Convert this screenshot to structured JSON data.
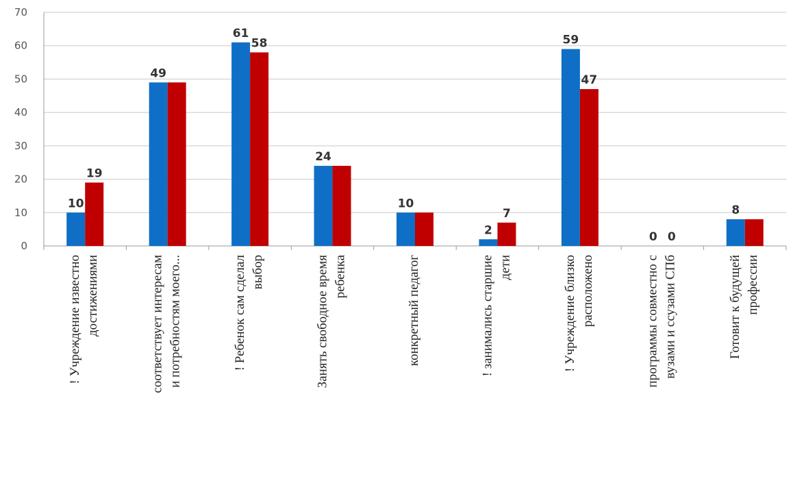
{
  "chart_data": {
    "type": "bar",
    "categories": [
      [
        "! Учреждение известно",
        "достижениями"
      ],
      [
        "соответствует интересам",
        "и потребностям моего..."
      ],
      [
        "! Ребенок сам сделал",
        "выбор"
      ],
      [
        "Занять свободное время",
        "ребенка"
      ],
      [
        "конкретный педагог"
      ],
      [
        "! занимались старшие",
        "дети"
      ],
      [
        "! Учреждение близко",
        "расположено"
      ],
      [
        "программы совместно с",
        "вузами и ссузами СПб"
      ],
      [
        "Готовит к будущей",
        "профессии"
      ]
    ],
    "series": [
      {
        "values": [
          10,
          49,
          61,
          24,
          10,
          2,
          59,
          0,
          8
        ],
        "color": "#0f6fc6"
      },
      {
        "values": [
          19,
          49,
          58,
          24,
          10,
          7,
          47,
          0,
          8
        ],
        "color": "#c00000"
      }
    ],
    "data_labels": [
      [
        "10",
        "19"
      ],
      [
        "49",
        ""
      ],
      [
        "61",
        "58"
      ],
      [
        "24",
        ""
      ],
      [
        "10",
        ""
      ],
      [
        "2",
        "7"
      ],
      [
        "59",
        "47"
      ],
      [
        "0",
        "0"
      ],
      [
        "8",
        ""
      ]
    ],
    "ylim": [
      0,
      70
    ],
    "yticks": [
      "0",
      "10",
      "20",
      "30",
      "40",
      "50",
      "60",
      "70"
    ],
    "grid": true
  }
}
